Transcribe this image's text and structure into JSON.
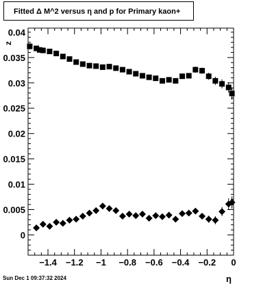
{
  "title_box": {
    "text": "Fitted Δ M^2 versus η and p for Primary kaon+"
  },
  "timestamp": "Sun Dec  1 09:37:32 2024",
  "chart_data": {
    "type": "scatter",
    "title": "Fitted Δ M^2 versus η and p for Primary kaon+",
    "xlabel": "η",
    "ylabel": "z",
    "xlim": [
      -1.55,
      0.0
    ],
    "ylim": [
      -0.004,
      0.0408
    ],
    "xticks": [
      -1.4,
      -1.2,
      -1,
      -0.8,
      -0.6,
      -0.4,
      -0.2,
      0
    ],
    "xtick_labels": [
      "−1.4",
      "−1.2",
      "−1",
      "−0.8",
      "−0.6",
      "−0.4",
      "−0.2",
      "0"
    ],
    "yticks": [
      0,
      0.005,
      0.01,
      0.015,
      0.02,
      0.025,
      0.03,
      0.035
    ],
    "ytick_labels": [
      "0",
      "0.005",
      "0.01",
      "0.015",
      "0.02",
      "0.025",
      "0.03",
      "0.035"
    ],
    "y_top_partial_label": "0.04",
    "grid": false,
    "series": [
      {
        "marker": "square",
        "color": "#000000",
        "x": [
          -1.5375,
          -1.4875,
          -1.4625,
          -1.4375,
          -1.3875,
          -1.3375,
          -1.2875,
          -1.2375,
          -1.1875,
          -1.1375,
          -1.0875,
          -1.0375,
          -0.9875,
          -0.9375,
          -0.8875,
          -0.8375,
          -0.7875,
          -0.7375,
          -0.6875,
          -0.6375,
          -0.5875,
          -0.5375,
          -0.4875,
          -0.4375,
          -0.3875,
          -0.3375,
          -0.2875,
          -0.2375,
          -0.1875,
          -0.1375,
          -0.0875,
          -0.0375,
          -0.0125
        ],
        "y": [
          0.0372,
          0.0368,
          0.0365,
          0.0364,
          0.0362,
          0.0358,
          0.0352,
          0.0347,
          0.0341,
          0.0337,
          0.0334,
          0.0333,
          0.0331,
          0.0332,
          0.0329,
          0.0326,
          0.0322,
          0.0318,
          0.0314,
          0.0311,
          0.0309,
          0.0304,
          0.0306,
          0.0304,
          0.0313,
          0.0314,
          0.0326,
          0.0324,
          0.0313,
          0.0304,
          0.0298,
          0.0291,
          0.0279
        ],
        "err": [
          0.0006,
          0.0005,
          0.0005,
          0.0005,
          0.0004,
          0.0004,
          0.0004,
          0.0004,
          0.0004,
          0.0004,
          0.0004,
          0.0004,
          0.0004,
          0.0004,
          0.0004,
          0.0004,
          0.0004,
          0.0004,
          0.0004,
          0.0004,
          0.0004,
          0.0004,
          0.0004,
          0.0005,
          0.0005,
          0.0005,
          0.0006,
          0.0006,
          0.0007,
          0.0008,
          0.0009,
          0.001,
          0.0012
        ]
      },
      {
        "marker": "diamond",
        "color": "#000000",
        "x": [
          -1.4875,
          -1.4375,
          -1.3875,
          -1.3375,
          -1.2875,
          -1.2375,
          -1.1875,
          -1.1375,
          -1.0875,
          -1.0375,
          -0.9875,
          -0.9375,
          -0.8875,
          -0.8375,
          -0.7875,
          -0.7375,
          -0.6875,
          -0.6375,
          -0.5875,
          -0.5375,
          -0.4875,
          -0.4375,
          -0.3875,
          -0.3375,
          -0.2875,
          -0.2375,
          -0.1875,
          -0.1375,
          -0.0875,
          -0.0375,
          -0.0125
        ],
        "y": [
          0.0014,
          0.0021,
          0.0017,
          0.0025,
          0.0023,
          0.0029,
          0.0031,
          0.0037,
          0.0043,
          0.0048,
          0.0057,
          0.0052,
          0.0048,
          0.0037,
          0.0041,
          0.0038,
          0.0041,
          0.0033,
          0.0038,
          0.0036,
          0.0039,
          0.0031,
          0.0042,
          0.0043,
          0.0047,
          0.0037,
          0.0031,
          0.0029,
          0.0046,
          0.0061,
          0.0064
        ],
        "err": [
          0.0004,
          0.0004,
          0.0004,
          0.0004,
          0.0004,
          0.0004,
          0.0004,
          0.0004,
          0.0004,
          0.0005,
          0.0005,
          0.0004,
          0.0005,
          0.0004,
          0.0004,
          0.0004,
          0.0004,
          0.0004,
          0.0004,
          0.0004,
          0.0005,
          0.0005,
          0.0005,
          0.0005,
          0.0006,
          0.0006,
          0.0007,
          0.0008,
          0.0009,
          0.0011,
          0.0012
        ]
      }
    ]
  }
}
